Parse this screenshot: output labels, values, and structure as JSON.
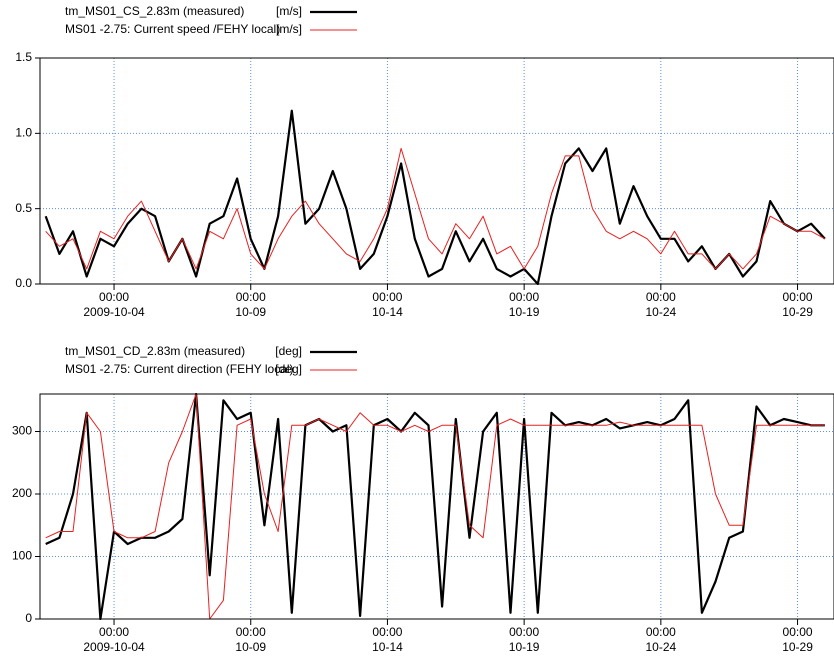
{
  "chart_data": [
    {
      "type": "line",
      "x": [
        "2009-10-01 12:00",
        "2009-10-02 00:00",
        "2009-10-02 12:00",
        "2009-10-03 00:00",
        "2009-10-03 12:00",
        "2009-10-04 00:00",
        "2009-10-04 12:00",
        "2009-10-05 00:00",
        "2009-10-05 12:00",
        "2009-10-06 00:00",
        "2009-10-06 12:00",
        "2009-10-07 00:00",
        "2009-10-07 12:00",
        "2009-10-08 00:00",
        "2009-10-08 12:00",
        "2009-10-09 00:00",
        "2009-10-09 12:00",
        "2009-10-10 00:00",
        "2009-10-10 12:00",
        "2009-10-11 00:00",
        "2009-10-11 12:00",
        "2009-10-12 00:00",
        "2009-10-12 12:00",
        "2009-10-13 00:00",
        "2009-10-13 12:00",
        "2009-10-14 00:00",
        "2009-10-14 12:00",
        "2009-10-15 00:00",
        "2009-10-15 12:00",
        "2009-10-16 00:00",
        "2009-10-16 12:00",
        "2009-10-17 00:00",
        "2009-10-17 12:00",
        "2009-10-18 00:00",
        "2009-10-18 12:00",
        "2009-10-19 00:00",
        "2009-10-19 12:00",
        "2009-10-20 00:00",
        "2009-10-20 12:00",
        "2009-10-21 00:00",
        "2009-10-21 12:00",
        "2009-10-22 00:00",
        "2009-10-22 12:00",
        "2009-10-23 00:00",
        "2009-10-23 12:00",
        "2009-10-24 00:00",
        "2009-10-24 12:00",
        "2009-10-25 00:00",
        "2009-10-25 12:00",
        "2009-10-26 00:00",
        "2009-10-26 12:00",
        "2009-10-27 00:00",
        "2009-10-27 12:00",
        "2009-10-28 00:00",
        "2009-10-28 12:00",
        "2009-10-29 00:00",
        "2009-10-29 12:00",
        "2009-10-30 00:00"
      ],
      "series": [
        {
          "name": "tm_MS01_CS_2.83m (measured)",
          "unit": "[m/s]",
          "color": "#000000",
          "width": 2.2,
          "values": [
            0.45,
            0.2,
            0.35,
            0.05,
            0.3,
            0.25,
            0.4,
            0.5,
            0.45,
            0.15,
            0.3,
            0.05,
            0.4,
            0.45,
            0.7,
            0.3,
            0.1,
            0.45,
            1.15,
            0.4,
            0.5,
            0.75,
            0.5,
            0.1,
            0.2,
            0.45,
            0.8,
            0.3,
            0.05,
            0.1,
            0.35,
            0.15,
            0.3,
            0.1,
            0.05,
            0.1,
            0.0,
            0.45,
            0.8,
            0.9,
            0.75,
            0.9,
            0.4,
            0.65,
            0.45,
            0.3,
            0.3,
            0.15,
            0.25,
            0.1,
            0.2,
            0.05,
            0.15,
            0.55,
            0.4,
            0.35,
            0.4,
            0.3
          ]
        },
        {
          "name": "MS01 -2.75: Current speed /FEHY local)",
          "unit": "[m/s]",
          "color": "#e8201f",
          "width": 1,
          "values": [
            0.35,
            0.25,
            0.3,
            0.1,
            0.35,
            0.3,
            0.45,
            0.55,
            0.35,
            0.15,
            0.3,
            0.1,
            0.35,
            0.3,
            0.5,
            0.2,
            0.1,
            0.3,
            0.45,
            0.55,
            0.4,
            0.3,
            0.2,
            0.15,
            0.3,
            0.5,
            0.9,
            0.6,
            0.3,
            0.2,
            0.4,
            0.3,
            0.45,
            0.2,
            0.25,
            0.1,
            0.25,
            0.6,
            0.85,
            0.85,
            0.5,
            0.35,
            0.3,
            0.35,
            0.3,
            0.2,
            0.35,
            0.2,
            0.2,
            0.1,
            0.2,
            0.1,
            0.2,
            0.45,
            0.4,
            0.35,
            0.35,
            0.3
          ]
        }
      ],
      "xlim": [
        "2009-10-01 07:00",
        "2009-10-30 08:00"
      ],
      "xticks": [
        {
          "value": "2009-10-04 00:00",
          "label": [
            "00:00",
            "2009-10-04"
          ]
        },
        {
          "value": "2009-10-09 00:00",
          "label": [
            "00:00",
            "10-09"
          ]
        },
        {
          "value": "2009-10-14 00:00",
          "label": [
            "00:00",
            "10-14"
          ]
        },
        {
          "value": "2009-10-19 00:00",
          "label": [
            "00:00",
            "10-19"
          ]
        },
        {
          "value": "2009-10-24 00:00",
          "label": [
            "00:00",
            "10-24"
          ]
        },
        {
          "value": "2009-10-29 00:00",
          "label": [
            "00:00",
            "10-29"
          ]
        }
      ],
      "ylim": [
        0,
        1.5
      ],
      "yticks": [
        {
          "value": 0,
          "label": "0.0"
        },
        {
          "value": 0.5,
          "label": "0.5"
        },
        {
          "value": 1,
          "label": "1.0"
        },
        {
          "value": 1.5,
          "label": "1.5"
        }
      ],
      "grid": true
    },
    {
      "type": "line",
      "x": [
        "2009-10-01 12:00",
        "2009-10-02 00:00",
        "2009-10-02 12:00",
        "2009-10-03 00:00",
        "2009-10-03 12:00",
        "2009-10-04 00:00",
        "2009-10-04 12:00",
        "2009-10-05 00:00",
        "2009-10-05 12:00",
        "2009-10-06 00:00",
        "2009-10-06 12:00",
        "2009-10-07 00:00",
        "2009-10-07 12:00",
        "2009-10-08 00:00",
        "2009-10-08 12:00",
        "2009-10-09 00:00",
        "2009-10-09 12:00",
        "2009-10-10 00:00",
        "2009-10-10 12:00",
        "2009-10-11 00:00",
        "2009-10-11 12:00",
        "2009-10-12 00:00",
        "2009-10-12 12:00",
        "2009-10-13 00:00",
        "2009-10-13 12:00",
        "2009-10-14 00:00",
        "2009-10-14 12:00",
        "2009-10-15 00:00",
        "2009-10-15 12:00",
        "2009-10-16 00:00",
        "2009-10-16 12:00",
        "2009-10-17 00:00",
        "2009-10-17 12:00",
        "2009-10-18 00:00",
        "2009-10-18 12:00",
        "2009-10-19 00:00",
        "2009-10-19 12:00",
        "2009-10-20 00:00",
        "2009-10-20 12:00",
        "2009-10-21 00:00",
        "2009-10-21 12:00",
        "2009-10-22 00:00",
        "2009-10-22 12:00",
        "2009-10-23 00:00",
        "2009-10-23 12:00",
        "2009-10-24 00:00",
        "2009-10-24 12:00",
        "2009-10-25 00:00",
        "2009-10-25 12:00",
        "2009-10-26 00:00",
        "2009-10-26 12:00",
        "2009-10-27 00:00",
        "2009-10-27 12:00",
        "2009-10-28 00:00",
        "2009-10-28 12:00",
        "2009-10-29 00:00",
        "2009-10-29 12:00",
        "2009-10-30 00:00"
      ],
      "series": [
        {
          "name": "tm_MS01_CD_2.83m (measured)",
          "unit": "[deg]",
          "color": "#000000",
          "width": 2.2,
          "values": [
            120,
            130,
            200,
            330,
            0,
            140,
            120,
            130,
            130,
            140,
            160,
            360,
            70,
            350,
            320,
            330,
            150,
            320,
            10,
            310,
            320,
            300,
            310,
            5,
            310,
            320,
            300,
            330,
            310,
            20,
            320,
            130,
            300,
            330,
            10,
            320,
            10,
            330,
            310,
            315,
            310,
            320,
            305,
            310,
            315,
            310,
            320,
            350,
            10,
            60,
            130,
            140,
            340,
            310,
            320,
            315,
            310,
            310
          ]
        },
        {
          "name": "MS01 -2.75: Current direction (FEHY local)",
          "unit": "[deg]",
          "color": "#e8201f",
          "width": 1,
          "values": [
            130,
            140,
            140,
            330,
            300,
            140,
            130,
            130,
            140,
            250,
            300,
            360,
            0,
            30,
            310,
            320,
            200,
            140,
            310,
            310,
            320,
            310,
            300,
            330,
            310,
            310,
            300,
            310,
            300,
            310,
            310,
            150,
            130,
            310,
            320,
            310,
            310,
            310,
            310,
            310,
            310,
            310,
            315,
            310,
            310,
            310,
            310,
            310,
            310,
            200,
            150,
            150,
            310,
            310,
            310,
            310,
            310,
            310
          ]
        }
      ],
      "xlim": [
        "2009-10-01 07:00",
        "2009-10-30 08:00"
      ],
      "xticks": [
        {
          "value": "2009-10-04 00:00",
          "label": [
            "00:00",
            "2009-10-04"
          ]
        },
        {
          "value": "2009-10-09 00:00",
          "label": [
            "00:00",
            "10-09"
          ]
        },
        {
          "value": "2009-10-14 00:00",
          "label": [
            "00:00",
            "10-14"
          ]
        },
        {
          "value": "2009-10-19 00:00",
          "label": [
            "00:00",
            "10-19"
          ]
        },
        {
          "value": "2009-10-24 00:00",
          "label": [
            "00:00",
            "10-24"
          ]
        },
        {
          "value": "2009-10-29 00:00",
          "label": [
            "00:00",
            "10-29"
          ]
        }
      ],
      "ylim": [
        0,
        360
      ],
      "yticks": [
        0,
        100,
        200,
        300
      ],
      "grid": true
    }
  ]
}
